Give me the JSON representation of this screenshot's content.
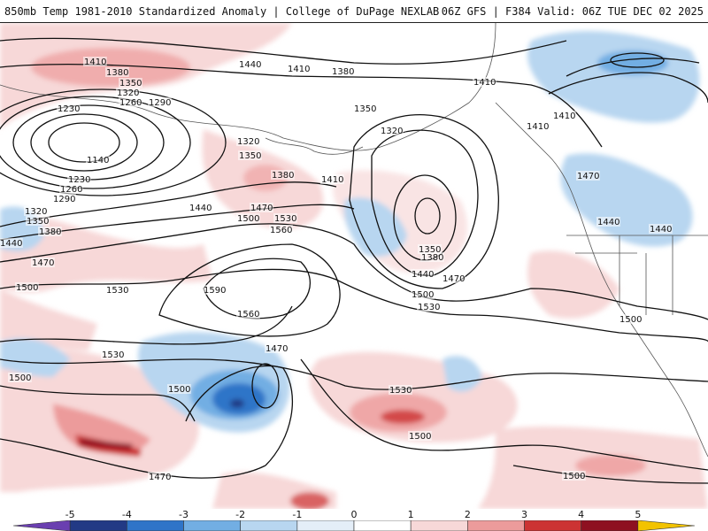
{
  "header": {
    "title_left": "850mb Temp 1981-2010 Standardized Anomaly | College of DuPage NEXLAB",
    "title_right": "06Z GFS | F384 Valid: 06Z TUE DEC 02 2025"
  },
  "legend": {
    "ticks": [
      "-5",
      "-4",
      "-3",
      "-2",
      "-1",
      "0",
      "1",
      "2",
      "3",
      "4",
      "5"
    ],
    "colors": [
      "#6a3fb0",
      "#223a85",
      "#2f74c8",
      "#72aee3",
      "#b8d6f0",
      "#e4eef8",
      "#ffffff",
      "#f7d8d8",
      "#ec9b9b",
      "#cc3333",
      "#8e1020",
      "#f2c300"
    ]
  },
  "contour_labels": [
    {
      "text": "1410",
      "id": "c1"
    },
    {
      "text": "1380",
      "id": "c2"
    },
    {
      "text": "1350",
      "id": "c3"
    },
    {
      "text": "1320",
      "id": "c4"
    },
    {
      "text": "1230",
      "id": "c5"
    },
    {
      "text": "1260",
      "id": "c6"
    },
    {
      "text": "1290",
      "id": "c7"
    },
    {
      "text": "1140",
      "id": "c8"
    },
    {
      "text": "1230",
      "id": "c9"
    },
    {
      "text": "1260",
      "id": "c10"
    },
    {
      "text": "1290",
      "id": "c11"
    },
    {
      "text": "1320",
      "id": "c12"
    },
    {
      "text": "1350",
      "id": "c13"
    },
    {
      "text": "1380",
      "id": "c14"
    },
    {
      "text": "1440",
      "id": "c15"
    },
    {
      "text": "1470",
      "id": "c16"
    },
    {
      "text": "1500",
      "id": "c17"
    },
    {
      "text": "1440",
      "id": "c18"
    },
    {
      "text": "1410",
      "id": "c19"
    },
    {
      "text": "1380",
      "id": "c20"
    },
    {
      "text": "1410",
      "id": "c21"
    },
    {
      "text": "1350",
      "id": "c22"
    },
    {
      "text": "1320",
      "id": "c23"
    },
    {
      "text": "1320",
      "id": "c24"
    },
    {
      "text": "1350",
      "id": "c25"
    },
    {
      "text": "1380",
      "id": "c26"
    },
    {
      "text": "1410",
      "id": "c27"
    },
    {
      "text": "1440",
      "id": "c28"
    },
    {
      "text": "1470",
      "id": "c29"
    },
    {
      "text": "1500",
      "id": "c30"
    },
    {
      "text": "1530",
      "id": "c31"
    },
    {
      "text": "1560",
      "id": "c32"
    },
    {
      "text": "1590",
      "id": "c33"
    },
    {
      "text": "1530",
      "id": "c34"
    },
    {
      "text": "1560",
      "id": "c35"
    },
    {
      "text": "1350",
      "id": "c36"
    },
    {
      "text": "1380",
      "id": "c37"
    },
    {
      "text": "1440",
      "id": "c38"
    },
    {
      "text": "1470",
      "id": "c39"
    },
    {
      "text": "1500",
      "id": "c40"
    },
    {
      "text": "1530",
      "id": "c41"
    },
    {
      "text": "1410",
      "id": "c42"
    },
    {
      "text": "1410",
      "id": "c43"
    },
    {
      "text": "1440",
      "id": "c44"
    },
    {
      "text": "1470",
      "id": "c45"
    },
    {
      "text": "1440",
      "id": "c46"
    },
    {
      "text": "1500",
      "id": "c47"
    },
    {
      "text": "1530",
      "id": "c48"
    },
    {
      "text": "1500",
      "id": "c49"
    },
    {
      "text": "1470",
      "id": "c50"
    },
    {
      "text": "1500",
      "id": "c51"
    },
    {
      "text": "1530",
      "id": "c52"
    },
    {
      "text": "1500",
      "id": "c53"
    },
    {
      "text": "1470",
      "id": "c54"
    },
    {
      "text": "1500",
      "id": "c55"
    },
    {
      "text": "1500",
      "id": "c56"
    }
  ]
}
